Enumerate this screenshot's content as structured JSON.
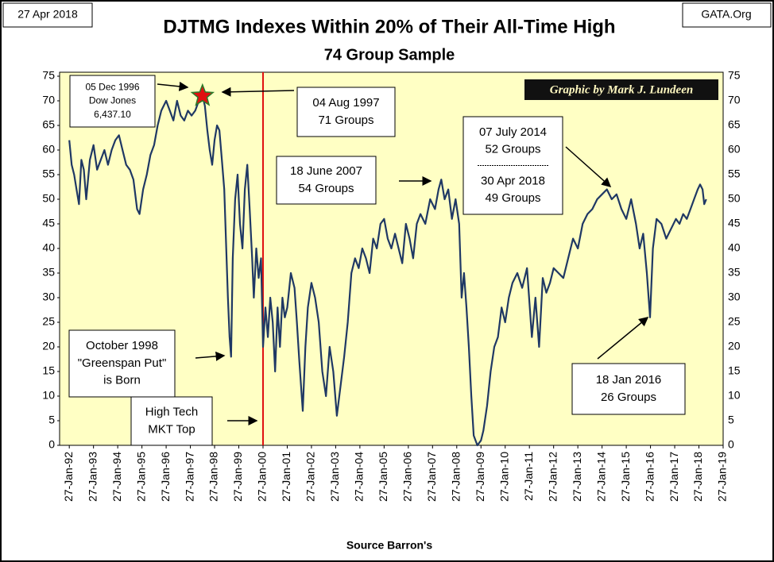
{
  "date_label": "27 Apr 2018",
  "site_label": "GATA.Org",
  "chart_data": {
    "type": "line",
    "title": "DJTMG Indexes Within 20% of Their All-Time High",
    "subtitle": "74 Group Sample",
    "credit": "Graphic by Mark J. Lundeen",
    "xlabel": "Source Barron's",
    "color": "#1f3864",
    "background": "#ffffc4",
    "reference_line_x": 2000.0,
    "reference_line_color": "#e01010",
    "highlight_point": {
      "x": 1997.5,
      "y": 71,
      "color": "#e01010"
    },
    "xlim": [
      1991.6,
      2019.0
    ],
    "ylim": [
      0,
      75
    ],
    "xticks": [
      {
        "value": 1992,
        "label": "27-Jan-92"
      },
      {
        "value": 1993,
        "label": "27-Jan-93"
      },
      {
        "value": 1994,
        "label": "27-Jan-94"
      },
      {
        "value": 1995,
        "label": "27-Jan-95"
      },
      {
        "value": 1996,
        "label": "27-Jan-96"
      },
      {
        "value": 1997,
        "label": "27-Jan-97"
      },
      {
        "value": 1998,
        "label": "27-Jan-98"
      },
      {
        "value": 1999,
        "label": "27-Jan-99"
      },
      {
        "value": 2000,
        "label": "27-Jan-00"
      },
      {
        "value": 2001,
        "label": "27-Jan-01"
      },
      {
        "value": 2002,
        "label": "27-Jan-02"
      },
      {
        "value": 2003,
        "label": "27-Jan-03"
      },
      {
        "value": 2004,
        "label": "27-Jan-04"
      },
      {
        "value": 2005,
        "label": "27-Jan-05"
      },
      {
        "value": 2006,
        "label": "27-Jan-06"
      },
      {
        "value": 2007,
        "label": "27-Jan-07"
      },
      {
        "value": 2008,
        "label": "27-Jan-08"
      },
      {
        "value": 2009,
        "label": "27-Jan-09"
      },
      {
        "value": 2010,
        "label": "27-Jan-10"
      },
      {
        "value": 2011,
        "label": "27-Jan-11"
      },
      {
        "value": 2012,
        "label": "27-Jan-12"
      },
      {
        "value": 2013,
        "label": "27-Jan-13"
      },
      {
        "value": 2014,
        "label": "27-Jan-14"
      },
      {
        "value": 2015,
        "label": "27-Jan-15"
      },
      {
        "value": 2016,
        "label": "27-Jan-16"
      },
      {
        "value": 2017,
        "label": "27-Jan-17"
      },
      {
        "value": 2018,
        "label": "27-Jan-18"
      },
      {
        "value": 2019,
        "label": "27-Jan-19"
      }
    ],
    "yticks": [
      0,
      5,
      10,
      15,
      20,
      25,
      30,
      35,
      40,
      45,
      50,
      55,
      60,
      65,
      70,
      75
    ],
    "annotations": [
      [
        "05 Dec 1996",
        "Dow Jones",
        "6,437.10"
      ],
      [
        "04 Aug 1997",
        "71 Groups"
      ],
      [
        "18 June 2007",
        "54 Groups"
      ],
      [
        "07 July 2014",
        "52 Groups"
      ],
      [
        "30 Apr 2018",
        "49 Groups"
      ],
      [
        "October 1998",
        "\"Greenspan Put\"",
        "is Born"
      ],
      [
        "High Tech",
        "MKT Top"
      ],
      [
        "18 Jan 2016",
        "26 Groups"
      ]
    ],
    "x": [
      1992.0,
      1992.1,
      1992.2,
      1992.3,
      1992.4,
      1992.5,
      1992.6,
      1992.7,
      1992.85,
      1993.0,
      1993.15,
      1993.3,
      1993.45,
      1993.6,
      1993.75,
      1993.9,
      1994.05,
      1994.2,
      1994.35,
      1994.5,
      1994.65,
      1994.8,
      1994.9,
      1995.05,
      1995.2,
      1995.35,
      1995.5,
      1995.65,
      1995.8,
      1996.0,
      1996.15,
      1996.3,
      1996.45,
      1996.6,
      1996.75,
      1996.9,
      1997.05,
      1997.2,
      1997.35,
      1997.5,
      1997.6,
      1997.7,
      1997.8,
      1997.9,
      1998.0,
      1998.1,
      1998.2,
      1998.3,
      1998.4,
      1998.48,
      1998.55,
      1998.62,
      1998.68,
      1998.75,
      1998.85,
      1998.95,
      1999.05,
      1999.15,
      1999.25,
      1999.35,
      1999.45,
      1999.55,
      1999.62,
      1999.72,
      1999.82,
      1999.92,
      2000.0,
      2000.1,
      2000.2,
      2000.3,
      2000.4,
      2000.5,
      2000.6,
      2000.7,
      2000.8,
      2000.9,
      2001.0,
      2001.15,
      2001.3,
      2001.4,
      2001.5,
      2001.64,
      2001.75,
      2001.85,
      2002.0,
      2002.15,
      2002.3,
      2002.45,
      2002.6,
      2002.75,
      2002.9,
      2003.05,
      2003.2,
      2003.35,
      2003.5,
      2003.65,
      2003.8,
      2003.95,
      2004.1,
      2004.25,
      2004.4,
      2004.55,
      2004.7,
      2004.85,
      2005.0,
      2005.15,
      2005.3,
      2005.45,
      2005.6,
      2005.75,
      2005.9,
      2006.05,
      2006.2,
      2006.35,
      2006.5,
      2006.7,
      2006.9,
      2007.1,
      2007.25,
      2007.36,
      2007.5,
      2007.65,
      2007.8,
      2007.95,
      2008.1,
      2008.2,
      2008.3,
      2008.4,
      2008.5,
      2008.6,
      2008.7,
      2008.85,
      2009.0,
      2009.1,
      2009.25,
      2009.4,
      2009.55,
      2009.7,
      2009.85,
      2010.0,
      2010.15,
      2010.3,
      2010.5,
      2010.7,
      2010.9,
      2011.1,
      2011.25,
      2011.4,
      2011.55,
      2011.7,
      2011.85,
      2012.0,
      2012.2,
      2012.4,
      2012.6,
      2012.8,
      2013.0,
      2013.2,
      2013.4,
      2013.6,
      2013.8,
      2014.0,
      2014.2,
      2014.4,
      2014.6,
      2014.8,
      2015.0,
      2015.2,
      2015.4,
      2015.55,
      2015.7,
      2015.85,
      2015.98,
      2016.1,
      2016.25,
      2016.45,
      2016.65,
      2016.85,
      2017.05,
      2017.2,
      2017.35,
      2017.5,
      2017.65,
      2017.8,
      2017.95,
      2018.05,
      2018.15,
      2018.22,
      2018.3
    ],
    "values": [
      62,
      57,
      55,
      52,
      49,
      58,
      56,
      50,
      58,
      61,
      56,
      58,
      60,
      57,
      60,
      62,
      63,
      60,
      57,
      56,
      54,
      48,
      47,
      52,
      55,
      59,
      61,
      65,
      68,
      70,
      68,
      66,
      70,
      67,
      66,
      68,
      67,
      68,
      70,
      71,
      69,
      64,
      60,
      57,
      62,
      65,
      64,
      58,
      52,
      40,
      30,
      22,
      18,
      38,
      50,
      55,
      45,
      40,
      52,
      57,
      48,
      38,
      30,
      40,
      34,
      38,
      20,
      28,
      22,
      30,
      25,
      15,
      28,
      20,
      30,
      26,
      28,
      35,
      32,
      25,
      17,
      7,
      20,
      28,
      33,
      30,
      25,
      15,
      10,
      20,
      15,
      6,
      12,
      18,
      25,
      35,
      38,
      36,
      40,
      38,
      35,
      42,
      40,
      45,
      46,
      42,
      40,
      43,
      40,
      37,
      45,
      42,
      38,
      45,
      47,
      45,
      50,
      48,
      52,
      54,
      50,
      52,
      46,
      50,
      45,
      30,
      35,
      28,
      20,
      10,
      2,
      0,
      1,
      3,
      8,
      15,
      20,
      22,
      28,
      25,
      30,
      33,
      35,
      32,
      36,
      22,
      30,
      20,
      34,
      31,
      33,
      36,
      35,
      34,
      38,
      42,
      40,
      45,
      47,
      48,
      50,
      51,
      52,
      50,
      51,
      48,
      46,
      50,
      45,
      40,
      43,
      35,
      26,
      40,
      46,
      45,
      42,
      44,
      46,
      45,
      47,
      46,
      48,
      50,
      52,
      53,
      52,
      49,
      50
    ]
  }
}
